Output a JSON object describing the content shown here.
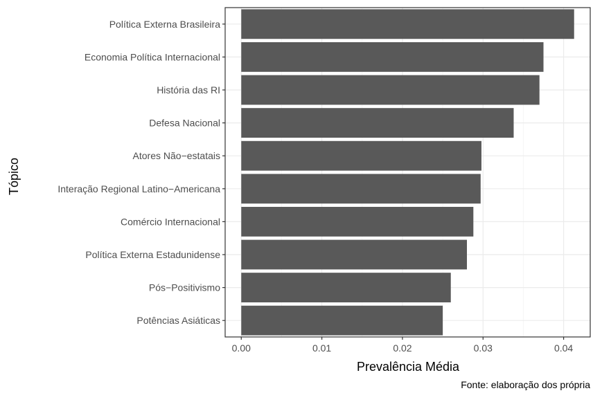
{
  "chart_data": {
    "type": "bar",
    "orientation": "horizontal",
    "categories": [
      "Política Externa Brasileira",
      "Economia Política Internacional",
      "História das RI",
      "Defesa Nacional",
      "Atores Não−estatais",
      "Interação Regional Latino−Americana",
      "Comércio Internacional",
      "Política Externa Estadunidense",
      "Pós−Positivismo",
      "Potências Asiáticas"
    ],
    "values": [
      0.0413,
      0.0375,
      0.037,
      0.0338,
      0.0298,
      0.0297,
      0.0288,
      0.028,
      0.026,
      0.025
    ],
    "xlabel": "Prevalência Média",
    "ylabel": "Tópico",
    "xlim": [
      -0.002,
      0.0433
    ],
    "xticks": [
      0.0,
      0.01,
      0.02,
      0.03,
      0.04
    ],
    "xtick_labels": [
      "0.00",
      "0.01",
      "0.02",
      "0.03",
      "0.04"
    ],
    "grid": true,
    "caption": "Fonte: elaboração dos própria",
    "colors": {
      "bar": "#595959",
      "grid_major": "#ebebeb",
      "grid_minor": "#f5f5f5",
      "panel_border": "#333333",
      "tick": "#333333"
    }
  }
}
